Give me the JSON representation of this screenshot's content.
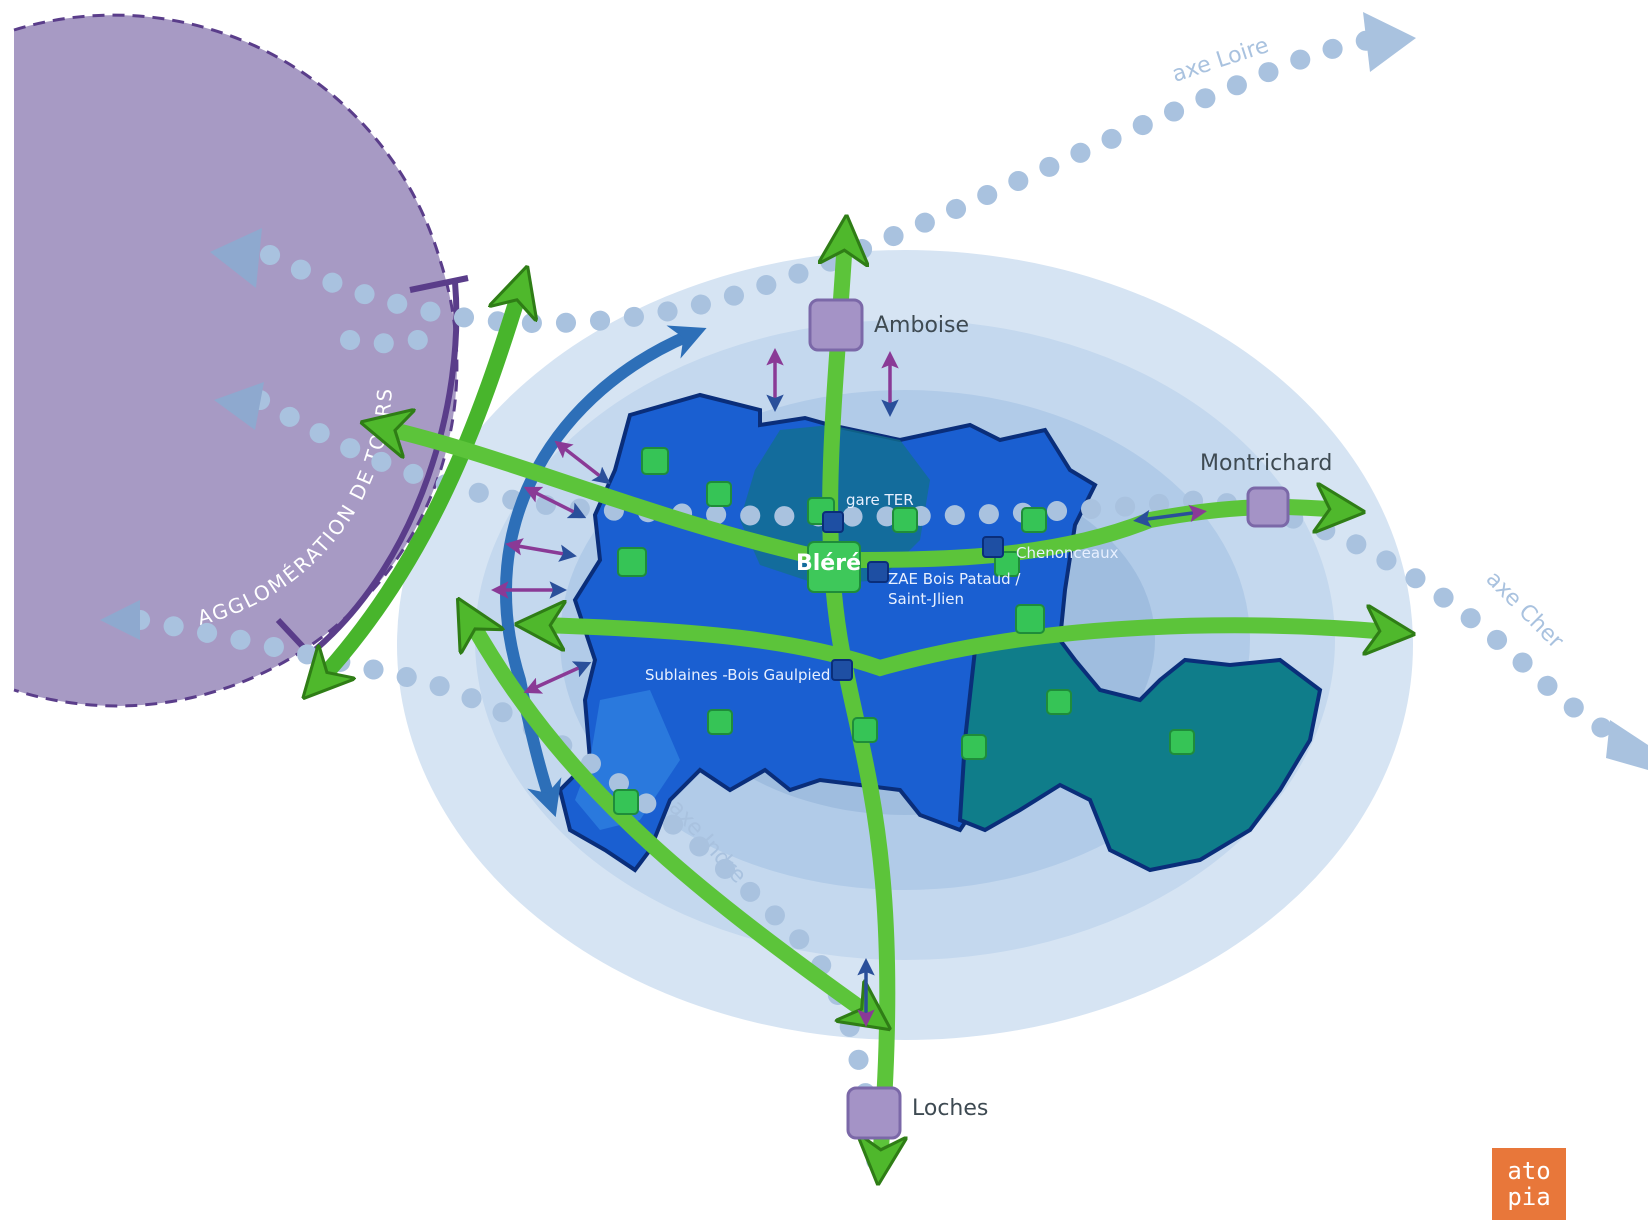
{
  "agglomeration": {
    "label": "AGGLOMÉRATION DE TOURS"
  },
  "towns": {
    "amboise": "Amboise",
    "montrichard": "Montrichard",
    "loches": "Loches",
    "blere": "Bléré"
  },
  "sites": {
    "gare": "gare TER",
    "chenonceaux": "Chenonceaux",
    "zae_line1": "ZAE Bois Pataud /",
    "zae_line2": "Saint-Jlien",
    "sublaines": "Sublaines -Bois Gaulpied"
  },
  "axes": {
    "loire": "axe Loire",
    "cher": "axe Cher",
    "indre": "axe Indre"
  },
  "logo": {
    "line1": "ato",
    "line2": "pia"
  },
  "colors": {
    "agglo_fill": "#a79ac4",
    "agglo_border": "#5a3d8a",
    "halo_outer": "#d6e4f3",
    "halo_mid": "#b8cfe8",
    "halo_inner": "#9fbddf",
    "territory_blue": "#1a5fd1",
    "territory_teal": "#0f7d8a",
    "green_arrow": "#5cc43a",
    "dotted_axis": "#a9c2df",
    "town_square": "#a493c6",
    "logo_orange": "#e8773a"
  }
}
